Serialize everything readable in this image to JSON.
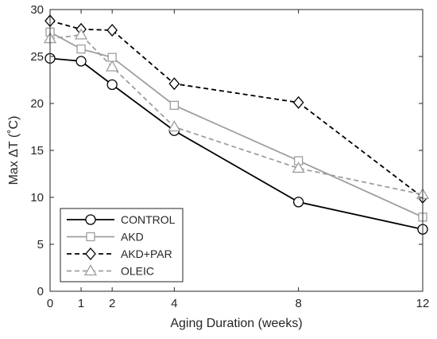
{
  "chart_data": {
    "type": "line",
    "xlabel": "Aging Duration (weeks)",
    "ylabel": "Max ΔT (˚C)",
    "xlim": [
      0,
      12
    ],
    "ylim": [
      0,
      30
    ],
    "xticks": [
      0,
      1,
      2,
      4,
      8,
      12
    ],
    "yticks": [
      0,
      5,
      10,
      15,
      20,
      25,
      30
    ],
    "grid": false,
    "legend_position": "bottom-left",
    "x": [
      0,
      1,
      2,
      4,
      8,
      12
    ],
    "series": [
      {
        "name": "CONTROL",
        "values": [
          24.8,
          24.5,
          22.0,
          17.1,
          9.5,
          6.6
        ],
        "color": "#000000",
        "dash": "solid",
        "marker": "circle"
      },
      {
        "name": "AKD",
        "values": [
          27.6,
          25.8,
          24.9,
          19.8,
          13.9,
          7.9
        ],
        "color": "#9e9e9e",
        "dash": "solid",
        "marker": "square"
      },
      {
        "name": "AKD+PAR",
        "values": [
          28.8,
          27.9,
          27.8,
          22.1,
          20.1,
          10.0
        ],
        "color": "#000000",
        "dash": "dashed",
        "marker": "diamond"
      },
      {
        "name": "OLEIC",
        "values": [
          26.9,
          27.3,
          23.9,
          17.5,
          13.1,
          10.3
        ],
        "color": "#9e9e9e",
        "dash": "dashed",
        "marker": "triangle"
      }
    ]
  }
}
